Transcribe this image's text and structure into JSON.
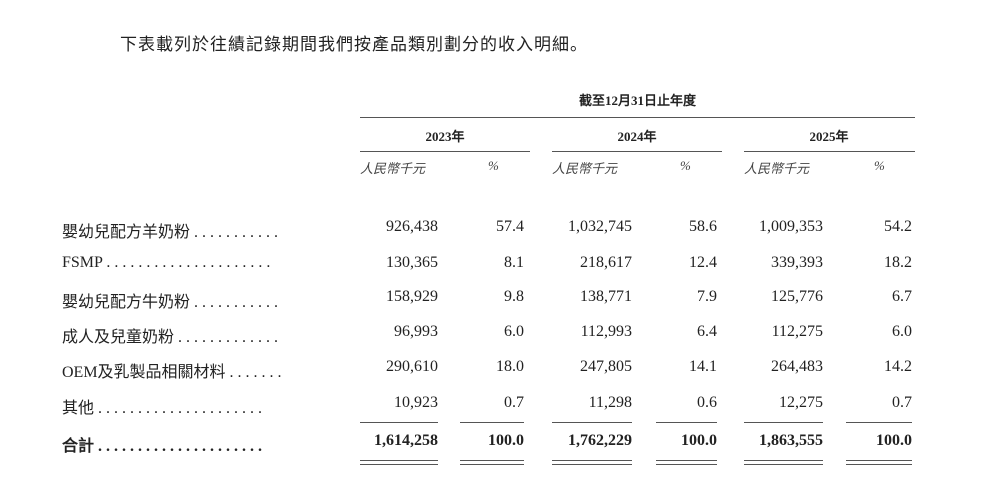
{
  "intro": "下表載列於往績記錄期間我們按產品類別劃分的收入明細。",
  "period_header": "截至12月31日止年度",
  "years": [
    "2023年",
    "2024年",
    "2025年"
  ],
  "subheaders": {
    "amount": "人民幣千元",
    "percent": "%"
  },
  "rows": [
    {
      "label": "嬰幼兒配方羊奶粉 . . . . . . . . . . .",
      "values": [
        "926,438",
        "57.4",
        "1,032,745",
        "58.6",
        "1,009,353",
        "54.2"
      ]
    },
    {
      "label": "FSMP . . . . . . . . . . . . . . . . . . . . .",
      "values": [
        "130,365",
        "8.1",
        "218,617",
        "12.4",
        "339,393",
        "18.2"
      ]
    },
    {
      "label": "嬰幼兒配方牛奶粉 . . . . . . . . . . .",
      "values": [
        "158,929",
        "9.8",
        "138,771",
        "7.9",
        "125,776",
        "6.7"
      ]
    },
    {
      "label": "成人及兒童奶粉 . . . . . . . . . . . . .",
      "values": [
        "96,993",
        "6.0",
        "112,993",
        "6.4",
        "112,275",
        "6.0"
      ]
    },
    {
      "label": "OEM及乳製品相關材料 . . . . . . .",
      "values": [
        "290,610",
        "18.0",
        "247,805",
        "14.1",
        "264,483",
        "14.2"
      ]
    },
    {
      "label": "其他 . . . . . . . . . . . . . . . . . . . . .",
      "values": [
        "10,923",
        "0.7",
        "11,298",
        "0.6",
        "12,275",
        "0.7"
      ]
    }
  ],
  "total": {
    "label": "合計 . . . . . . . . . . . . . . . . . . . . .",
    "values": [
      "1,614,258",
      "100.0",
      "1,762,229",
      "100.0",
      "1,863,555",
      "100.0"
    ]
  }
}
